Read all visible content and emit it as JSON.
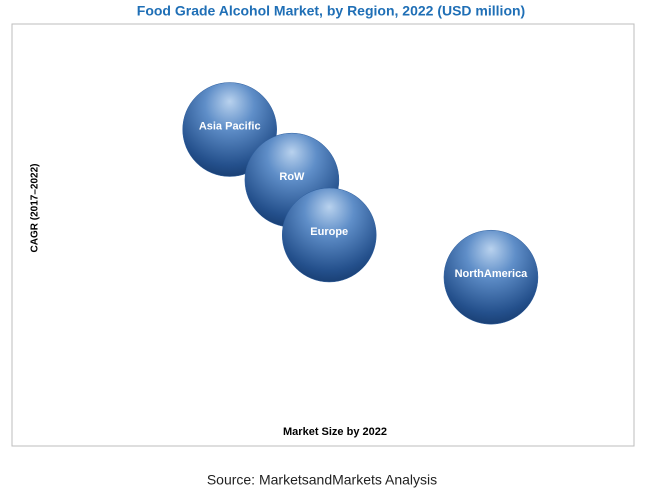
{
  "chart_data": {
    "type": "bubble",
    "title": "Food Grade Alcohol Market, by Region, 2022 (USD million)",
    "x_label": "Market Size by 2022",
    "y_label": "CAGR (2017–2022)",
    "source": "Source: MarketsandMarkets Analysis",
    "labels": [
      "Asia Pacific",
      "RoW",
      "Europe",
      "NorthAmerica"
    ],
    "x": [
      35,
      45,
      51,
      77
    ],
    "y": [
      75,
      63,
      50,
      40
    ],
    "xlim": [
      0,
      100
    ],
    "ylim": [
      0,
      100
    ],
    "color": "#2f5f9e"
  }
}
